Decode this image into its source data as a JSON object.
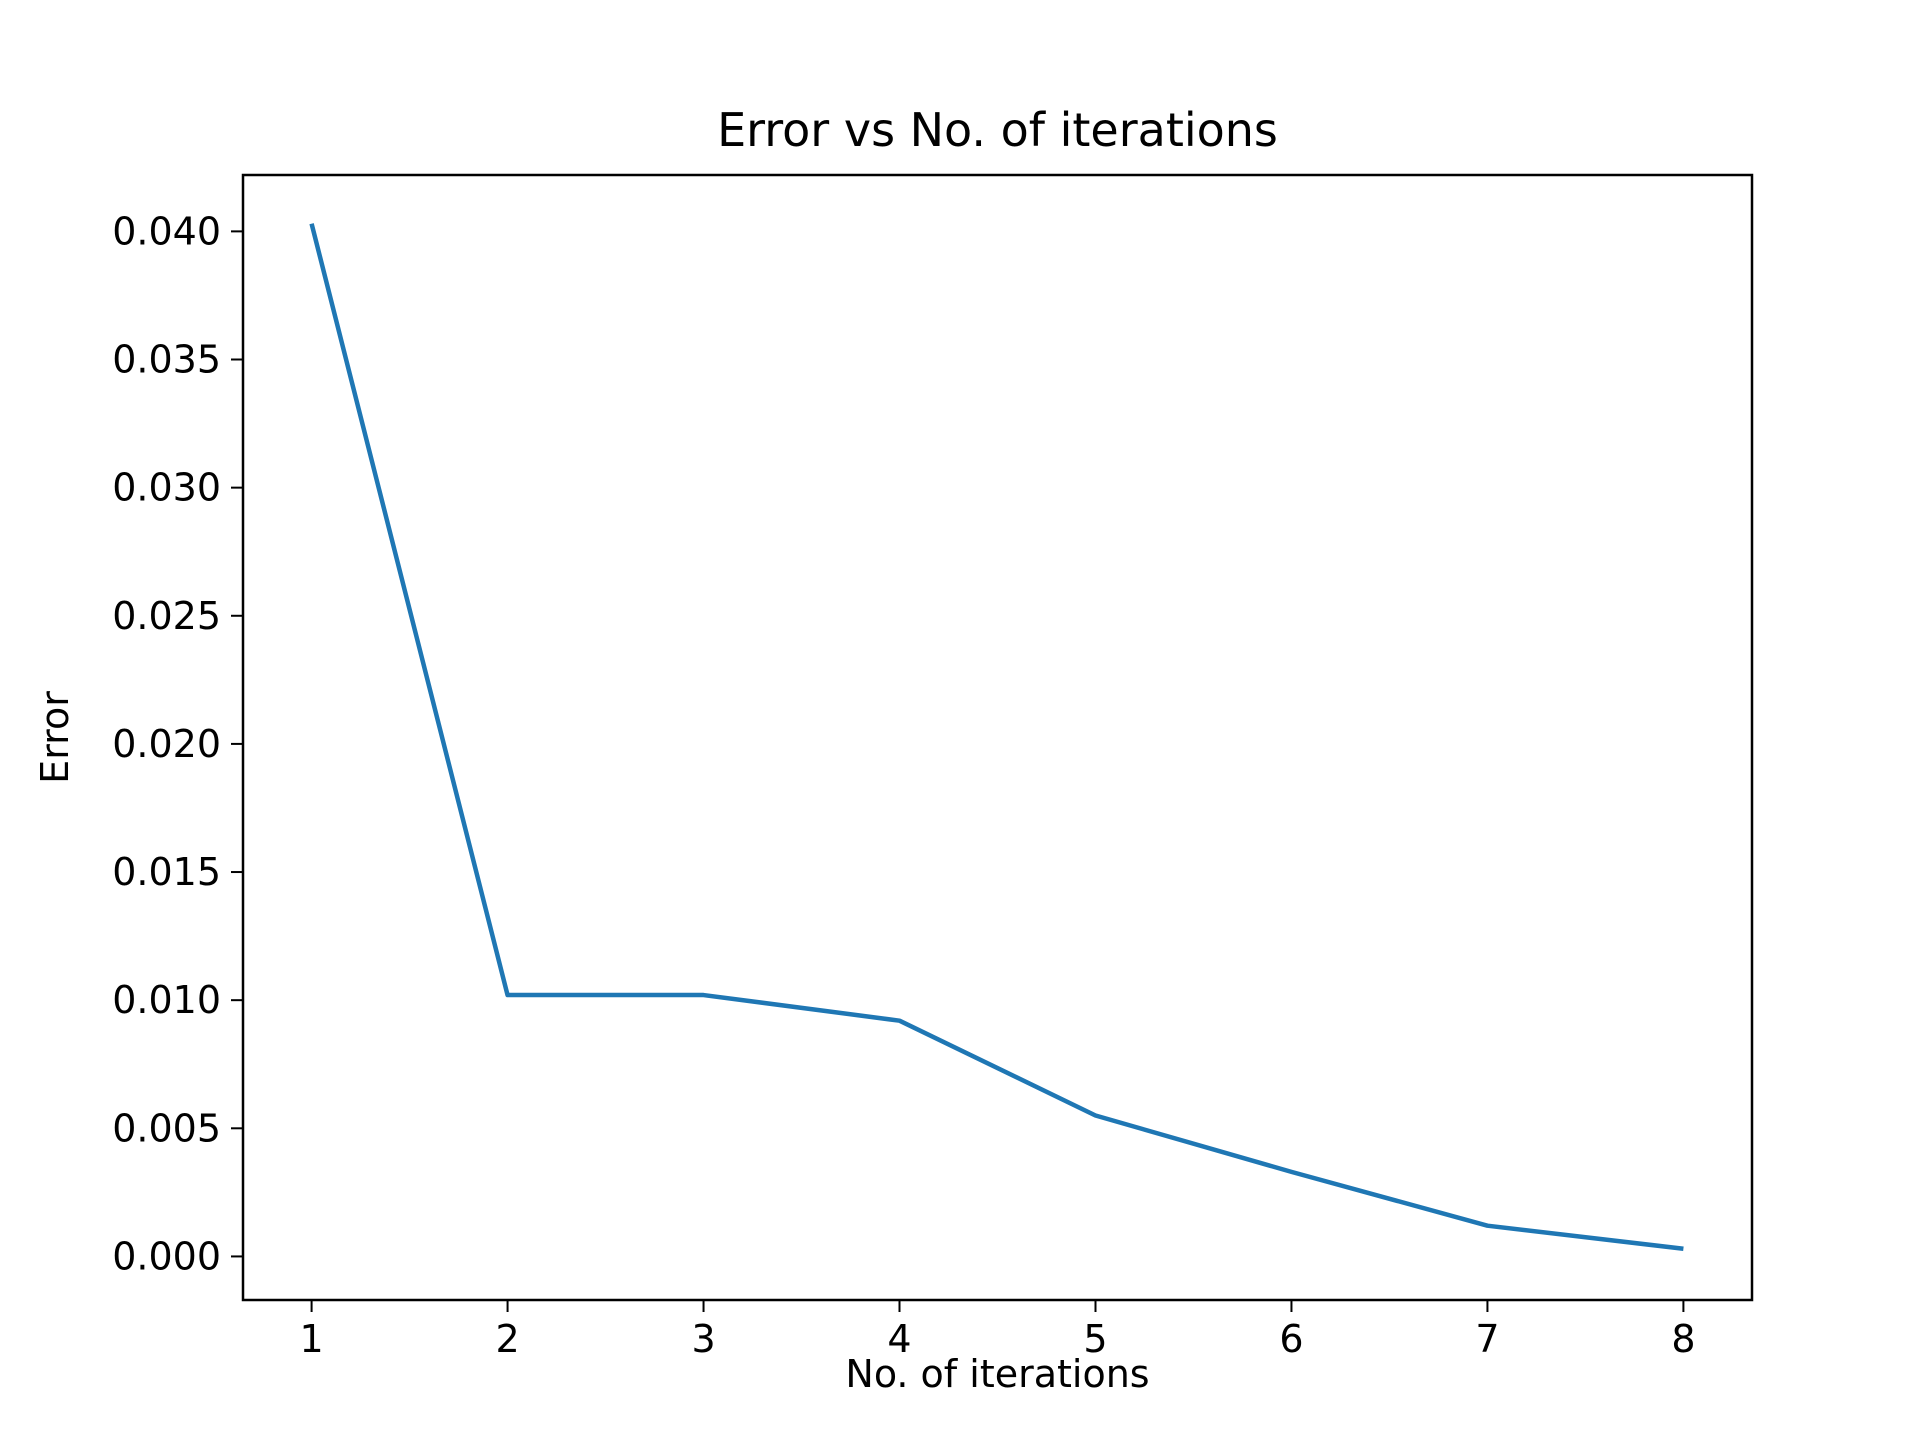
{
  "chart_data": {
    "type": "line",
    "title": "Error vs No. of iterations",
    "xlabel": "No. of iterations",
    "ylabel": "Error",
    "x": [
      1,
      2,
      3,
      4,
      5,
      6,
      7,
      8
    ],
    "series": [
      {
        "color": "#1f77b4",
        "values": [
          0.0403,
          0.0102,
          0.0102,
          0.0092,
          0.0055,
          0.0033,
          0.0012,
          0.0003
        ]
      }
    ],
    "xlim": [
      0.65,
      8.35
    ],
    "ylim": [
      -0.0017,
      0.0422
    ],
    "xticks": [
      1,
      2,
      3,
      4,
      5,
      6,
      7,
      8
    ],
    "xtick_labels": [
      "1",
      "2",
      "3",
      "4",
      "5",
      "6",
      "7",
      "8"
    ],
    "yticks": [
      0.0,
      0.005,
      0.01,
      0.015,
      0.02,
      0.025,
      0.03,
      0.035,
      0.04
    ],
    "ytick_labels": [
      "0.000",
      "0.005",
      "0.010",
      "0.015",
      "0.020",
      "0.025",
      "0.030",
      "0.035",
      "0.040"
    ],
    "grid": false,
    "legend": "none"
  }
}
